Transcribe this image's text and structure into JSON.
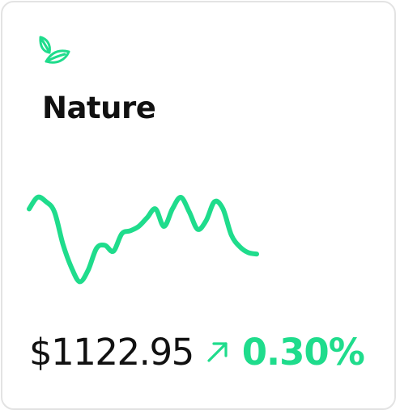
{
  "card": {
    "title": "Nature",
    "category_icon": "leaf-icon",
    "price": "$1122.95",
    "trend_icon": "arrow-up-right-icon",
    "change": "0.30%"
  },
  "colors": {
    "accent": "#1fdc8c",
    "text": "#111111",
    "border": "#e3e3e3",
    "background": "#ffffff"
  },
  "chart_data": {
    "type": "line",
    "values": [
      62,
      70,
      67,
      60,
      38,
      22,
      12,
      20,
      35,
      37,
      33,
      45,
      47,
      50,
      56,
      62,
      50,
      62,
      70,
      60,
      48,
      54,
      67,
      62,
      44,
      36,
      32,
      31
    ],
    "ylim": [
      0,
      100
    ]
  }
}
